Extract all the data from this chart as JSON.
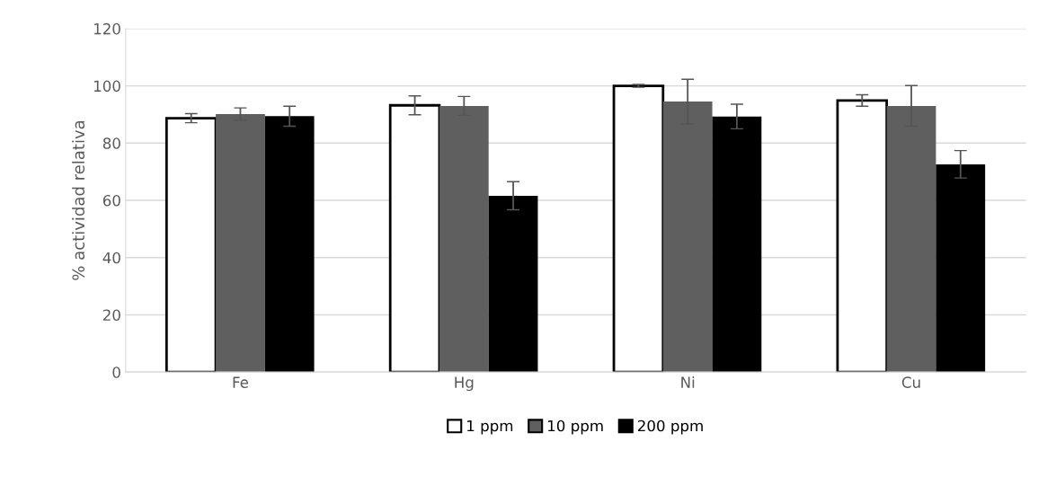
{
  "chart_data": {
    "type": "bar",
    "ylabel": "% actividad relativa",
    "categories": [
      "Fe",
      "Hg",
      "Ni",
      "Cu"
    ],
    "series": [
      {
        "name": "1 ppm",
        "color": "#ffffff",
        "values": [
          88.7,
          93.2,
          100,
          94.9
        ],
        "errors": [
          1.6,
          3.3,
          0.5,
          2.0
        ]
      },
      {
        "name": "10 ppm",
        "color": "#5f5f5f",
        "values": [
          90.1,
          93.0,
          94.5,
          93.0
        ],
        "errors": [
          2.2,
          3.3,
          7.8,
          7.1
        ]
      },
      {
        "name": "200 ppm",
        "color": "#000000",
        "values": [
          89.4,
          61.6,
          89.3,
          72.6
        ],
        "errors": [
          3.5,
          4.9,
          4.3,
          4.8
        ]
      }
    ],
    "ylim": [
      0,
      120
    ],
    "yticks": [
      0,
      20,
      40,
      60,
      80,
      100,
      120
    ],
    "grid": "y",
    "legend": "bottom"
  }
}
